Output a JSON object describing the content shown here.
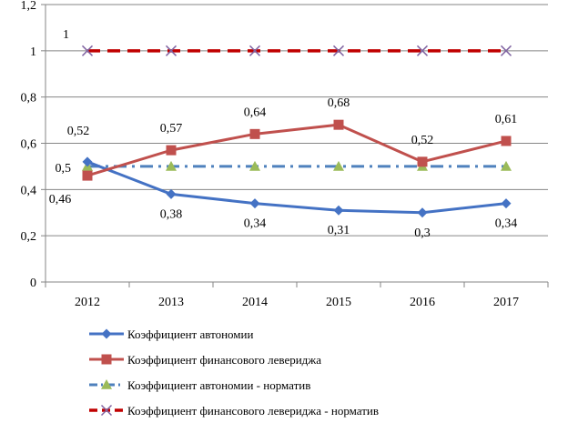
{
  "chart_data": {
    "type": "line",
    "title": "",
    "xlabel": "",
    "ylabel": "",
    "categories": [
      "2012",
      "2013",
      "2014",
      "2015",
      "2016",
      "2017"
    ],
    "ylim": [
      0,
      1.2
    ],
    "yticks": [
      0,
      0.2,
      0.4,
      0.6,
      0.8,
      1,
      1.2
    ],
    "ytick_labels": [
      "0",
      "0,2",
      "0,4",
      "0,6",
      "0,8",
      "1",
      "1,2"
    ],
    "grid": "horizontal",
    "legend_position": "bottom",
    "series": [
      {
        "name": "Коэффициент автономии",
        "values": [
          0.52,
          0.38,
          0.34,
          0.31,
          0.3,
          0.34
        ],
        "labels": [
          "0,52",
          "0,38",
          "0,34",
          "0,31",
          "0,3",
          "0,34"
        ],
        "color": "#4472C4",
        "marker": "diamond",
        "line": "solid"
      },
      {
        "name": "Коэффициент финансового левериджа",
        "values": [
          0.46,
          0.57,
          0.64,
          0.68,
          0.52,
          0.61
        ],
        "labels": [
          "0,46",
          "0,57",
          "0,64",
          "0,68",
          "0,52",
          "0,61"
        ],
        "color": "#C0504D",
        "marker": "square",
        "line": "solid"
      },
      {
        "name": "Коэффициент автономии - норматив",
        "values": [
          0.5,
          0.5,
          0.5,
          0.5,
          0.5,
          0.5
        ],
        "labels": [
          "0,5",
          "",
          "",
          "",
          "",
          ""
        ],
        "color": "#4F81BD",
        "marker_color": "#9BBB59",
        "marker": "triangle",
        "line": "dashdot"
      },
      {
        "name": "Коэффициент финансового левериджа - норматив",
        "values": [
          1,
          1,
          1,
          1,
          1,
          1
        ],
        "labels": [
          "1",
          "",
          "",
          "",
          "",
          ""
        ],
        "color": "#C00000",
        "marker_color": "#8064A2",
        "marker": "x",
        "line": "dashed"
      }
    ]
  }
}
